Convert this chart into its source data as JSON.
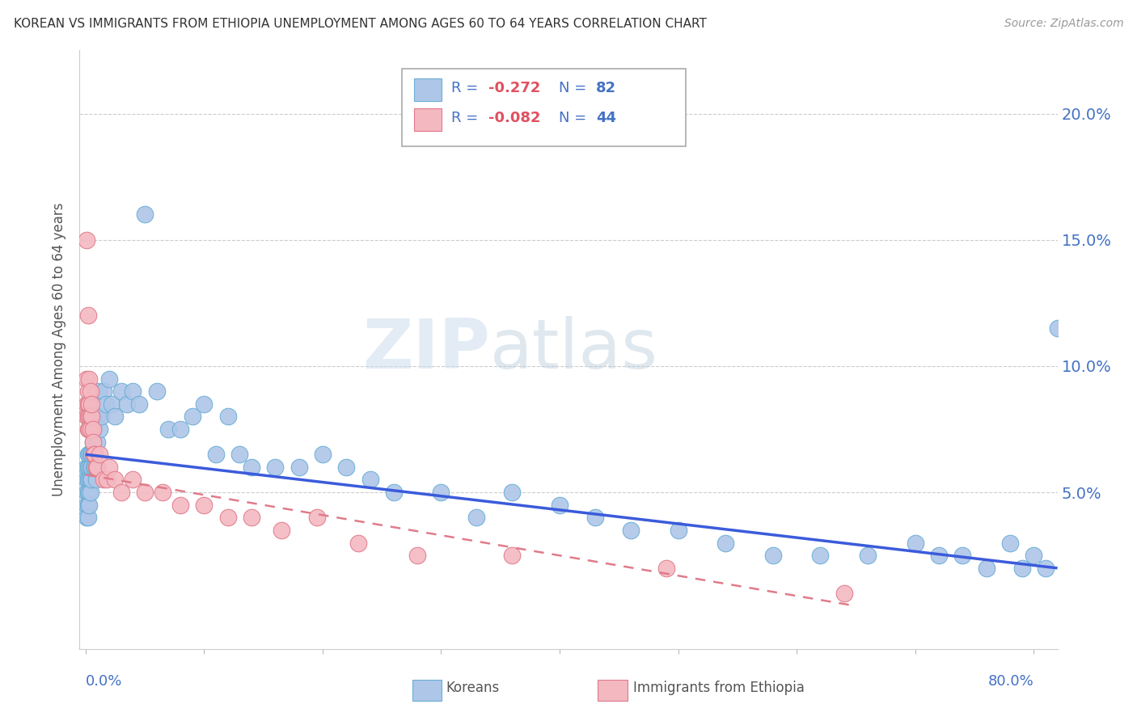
{
  "title": "KOREAN VS IMMIGRANTS FROM ETHIOPIA UNEMPLOYMENT AMONG AGES 60 TO 64 YEARS CORRELATION CHART",
  "source": "Source: ZipAtlas.com",
  "ylabel": "Unemployment Among Ages 60 to 64 years",
  "ytick_labels": [
    "5.0%",
    "10.0%",
    "15.0%",
    "20.0%"
  ],
  "ytick_values": [
    0.05,
    0.1,
    0.15,
    0.2
  ],
  "xlim": [
    -0.005,
    0.82
  ],
  "ylim": [
    -0.012,
    0.225
  ],
  "korean_R": -0.272,
  "korean_N": 82,
  "ethiopia_R": -0.082,
  "ethiopia_N": 44,
  "korean_color": "#aec6e8",
  "korean_edge_color": "#6aaed6",
  "ethiopia_color": "#f4b8c1",
  "ethiopia_edge_color": "#e07b8a",
  "korean_line_color": "#3b5bdb",
  "ethiopia_line_color": "#e07b8a",
  "watermark_zip": "ZIP",
  "watermark_atlas": "atlas",
  "axis_label_color": "#4472c4",
  "legend_R_color": "#e05060",
  "legend_N_color": "#4472c4",
  "legend_text_color": "#4472c4",
  "koreans_x": [
    0.001,
    0.001,
    0.001,
    0.001,
    0.001,
    0.002,
    0.002,
    0.002,
    0.002,
    0.002,
    0.002,
    0.003,
    0.003,
    0.003,
    0.003,
    0.003,
    0.004,
    0.004,
    0.004,
    0.004,
    0.005,
    0.005,
    0.005,
    0.006,
    0.006,
    0.006,
    0.007,
    0.007,
    0.008,
    0.008,
    0.009,
    0.009,
    0.01,
    0.01,
    0.011,
    0.012,
    0.013,
    0.015,
    0.017,
    0.02,
    0.022,
    0.025,
    0.03,
    0.035,
    0.04,
    0.045,
    0.05,
    0.06,
    0.07,
    0.08,
    0.09,
    0.1,
    0.11,
    0.12,
    0.13,
    0.14,
    0.16,
    0.18,
    0.2,
    0.22,
    0.24,
    0.26,
    0.3,
    0.33,
    0.36,
    0.4,
    0.43,
    0.46,
    0.5,
    0.54,
    0.58,
    0.62,
    0.66,
    0.7,
    0.72,
    0.74,
    0.76,
    0.78,
    0.79,
    0.8,
    0.81,
    0.82
  ],
  "koreans_y": [
    0.05,
    0.045,
    0.04,
    0.055,
    0.06,
    0.05,
    0.055,
    0.06,
    0.045,
    0.04,
    0.065,
    0.05,
    0.055,
    0.06,
    0.045,
    0.065,
    0.055,
    0.05,
    0.06,
    0.065,
    0.055,
    0.06,
    0.065,
    0.065,
    0.07,
    0.08,
    0.06,
    0.075,
    0.06,
    0.065,
    0.06,
    0.055,
    0.07,
    0.08,
    0.09,
    0.075,
    0.08,
    0.09,
    0.085,
    0.095,
    0.085,
    0.08,
    0.09,
    0.085,
    0.09,
    0.085,
    0.16,
    0.09,
    0.075,
    0.075,
    0.08,
    0.085,
    0.065,
    0.08,
    0.065,
    0.06,
    0.06,
    0.06,
    0.065,
    0.06,
    0.055,
    0.05,
    0.05,
    0.04,
    0.05,
    0.045,
    0.04,
    0.035,
    0.035,
    0.03,
    0.025,
    0.025,
    0.025,
    0.03,
    0.025,
    0.025,
    0.02,
    0.03,
    0.02,
    0.025,
    0.02,
    0.115
  ],
  "ethiopia_x": [
    0.001,
    0.001,
    0.001,
    0.001,
    0.002,
    0.002,
    0.002,
    0.002,
    0.002,
    0.003,
    0.003,
    0.003,
    0.003,
    0.004,
    0.004,
    0.004,
    0.005,
    0.005,
    0.006,
    0.006,
    0.007,
    0.008,
    0.009,
    0.01,
    0.012,
    0.015,
    0.018,
    0.02,
    0.025,
    0.03,
    0.04,
    0.05,
    0.065,
    0.08,
    0.1,
    0.12,
    0.14,
    0.165,
    0.195,
    0.23,
    0.28,
    0.36,
    0.49,
    0.64
  ],
  "ethiopia_y": [
    0.095,
    0.085,
    0.08,
    0.15,
    0.09,
    0.085,
    0.08,
    0.075,
    0.12,
    0.085,
    0.08,
    0.075,
    0.095,
    0.08,
    0.075,
    0.09,
    0.08,
    0.085,
    0.075,
    0.07,
    0.065,
    0.065,
    0.06,
    0.06,
    0.065,
    0.055,
    0.055,
    0.06,
    0.055,
    0.05,
    0.055,
    0.05,
    0.05,
    0.045,
    0.045,
    0.04,
    0.04,
    0.035,
    0.04,
    0.03,
    0.025,
    0.025,
    0.02,
    0.01
  ],
  "korean_trend_x": [
    0.0,
    0.82
  ],
  "korean_trend_y": [
    0.065,
    0.02
  ],
  "ethiopia_trend_x": [
    0.0,
    0.65
  ],
  "ethiopia_trend_y": [
    0.057,
    0.005
  ]
}
